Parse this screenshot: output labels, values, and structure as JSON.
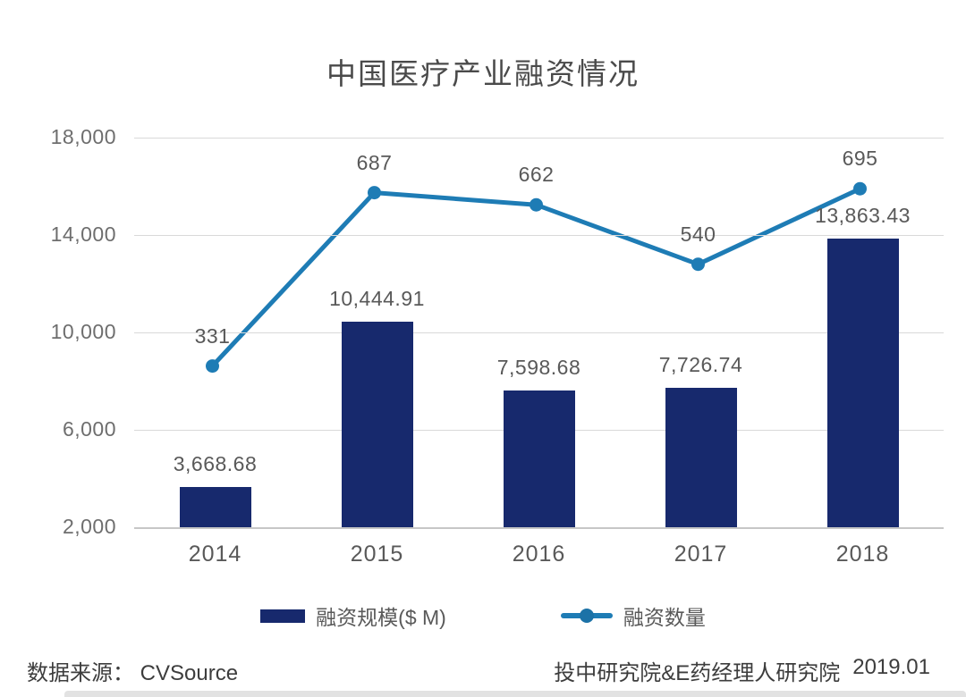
{
  "title": "中国医疗产业融资情况",
  "chart_data": {
    "type": "bar",
    "subtype": "bar-line-combo",
    "title": "中国医疗产业融资情况",
    "categories": [
      "2014",
      "2015",
      "2016",
      "2017",
      "2018"
    ],
    "series": [
      {
        "name": "融资规模($ M)",
        "type": "bar",
        "values": [
          3668.68,
          10444.91,
          7598.68,
          7726.74,
          13863.43
        ],
        "labels": [
          "3,668.68",
          "10,444.91",
          "7,598.68",
          "7,726.74",
          "13,863.43"
        ],
        "color": "#17296d",
        "axis": "left",
        "ylim": [
          2000,
          18000
        ]
      },
      {
        "name": "融资数量",
        "type": "line",
        "values": [
          331,
          687,
          662,
          540,
          695
        ],
        "labels": [
          "331",
          "687",
          "662",
          "540",
          "695"
        ],
        "color": "#1e7cb5",
        "axis": "right-hidden",
        "ylim": [
          0,
          800
        ]
      }
    ],
    "y_axis": {
      "ticks": [
        "18,000",
        "14,000",
        "10,000",
        "6,000",
        "2,000"
      ],
      "tick_values": [
        18000,
        14000,
        10000,
        6000,
        2000
      ],
      "min": 2000,
      "max": 18000,
      "grid": true
    },
    "legend_position": "bottom"
  },
  "colors": {
    "grid": "#d9d9d9",
    "axis_line": "#c6c6c6",
    "tick_text": "#6e6e6e",
    "label_text": "#595959",
    "title_text": "#4a4a4a",
    "footer_text": "#3d3d3d",
    "bar": "#17296d",
    "line": "#1e7cb5"
  },
  "footer": {
    "source_label": "数据来源：",
    "source_value": "CVSource",
    "credit": "投中研究院&E药经理人研究院",
    "date": "2019.01"
  }
}
